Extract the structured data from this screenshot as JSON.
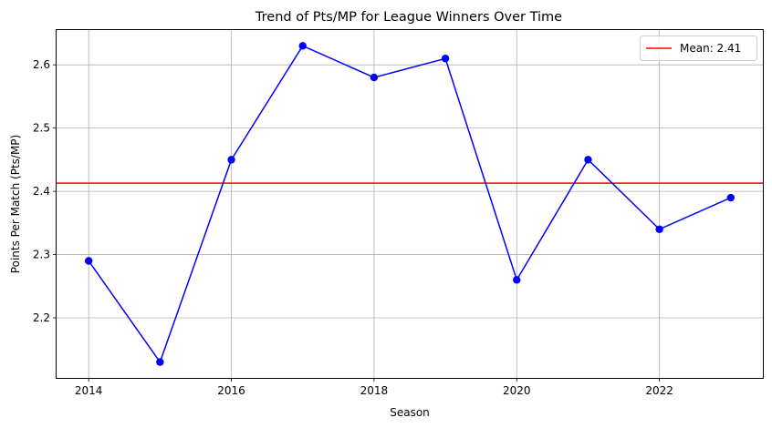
{
  "chart_data": {
    "type": "line",
    "title": "Trend of Pts/MP for League Winners Over Time",
    "xlabel": "Season",
    "ylabel": "Points Per Match (Pts/MP)",
    "x": [
      2014,
      2015,
      2016,
      2017,
      2018,
      2019,
      2020,
      2021,
      2022,
      2023
    ],
    "series": [
      {
        "values": [
          2.29,
          2.13,
          2.45,
          2.63,
          2.58,
          2.61,
          2.26,
          2.45,
          2.34,
          2.39
        ],
        "color": "#0000ff",
        "marker": "circle"
      }
    ],
    "reference_line": {
      "label": "Mean: 2.41",
      "value": 2.413,
      "color": "#ff0000"
    },
    "xticks": [
      "2014",
      "2016",
      "2018",
      "2020",
      "2022"
    ],
    "yticks": [
      "2.2",
      "2.3",
      "2.4",
      "2.5",
      "2.6"
    ],
    "xlim": [
      2013.55,
      2023.45
    ],
    "ylim": [
      2.105,
      2.655
    ],
    "grid": true,
    "legend_position": "top-right"
  }
}
